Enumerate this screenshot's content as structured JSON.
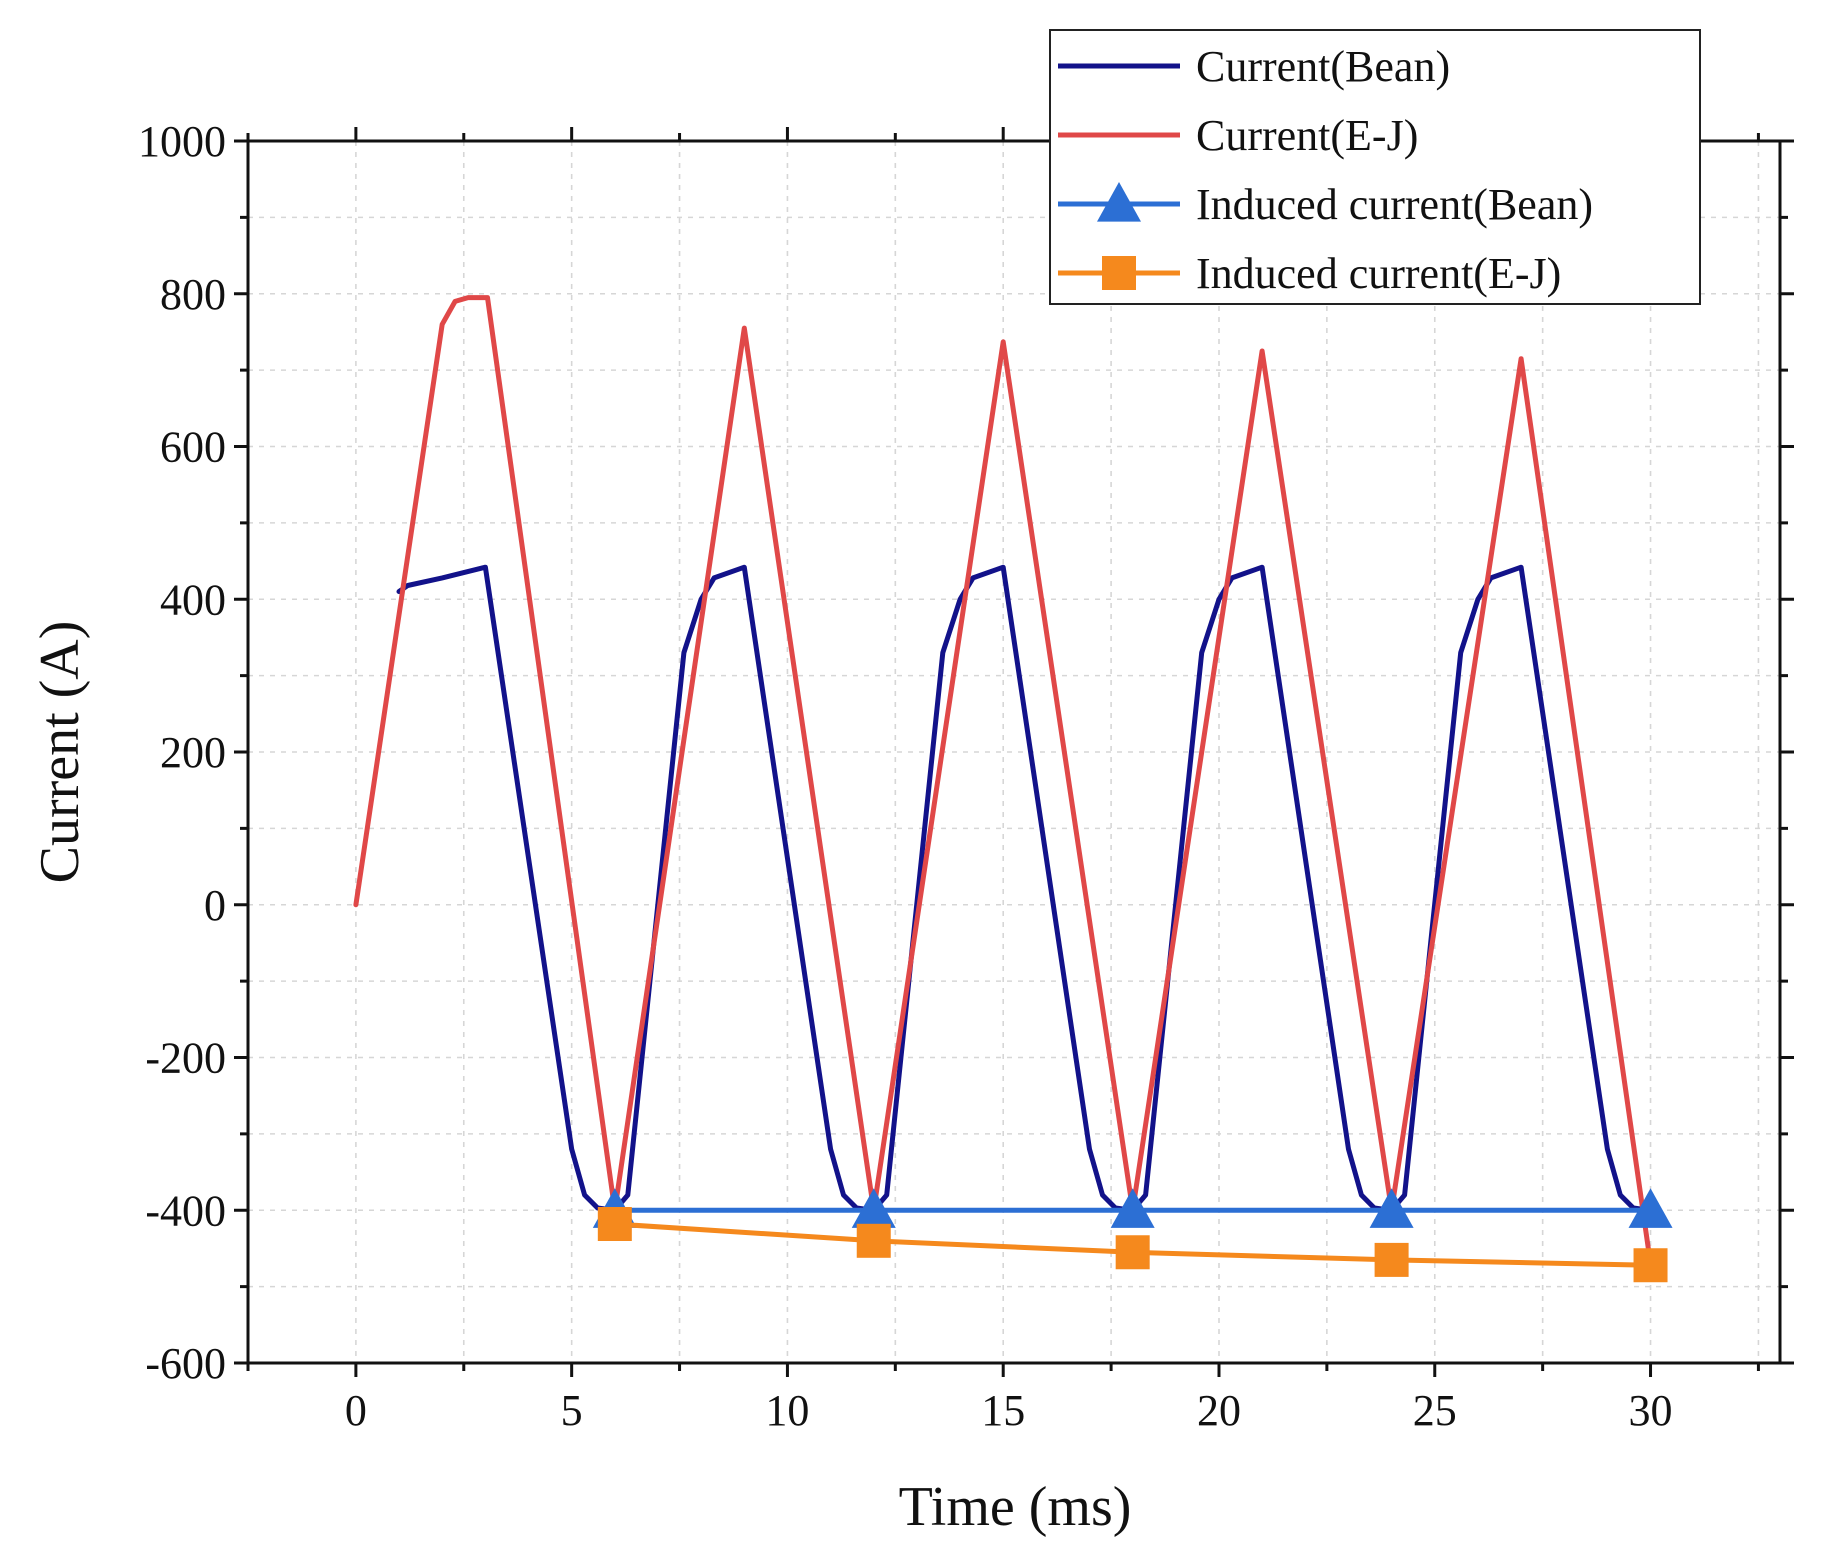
{
  "chart_data": {
    "type": "line",
    "xlabel": "Time (ms)",
    "ylabel": "Current (A)",
    "xlim": [
      -2.5,
      33
    ],
    "ylim": [
      -600,
      1000
    ],
    "xticks": [
      0,
      5,
      10,
      15,
      20,
      25,
      30
    ],
    "xtick_labels": [
      "0",
      "5",
      "10",
      "15",
      "20",
      "25",
      "30"
    ],
    "yticks": [
      -600,
      -400,
      -200,
      0,
      200,
      400,
      600,
      800,
      1000
    ],
    "ytick_labels": [
      "-600",
      "-400",
      "-200",
      "0",
      "200",
      "400",
      "600",
      "800",
      "1000"
    ],
    "grid": true,
    "legend_position": "top-right",
    "series": [
      {
        "name": "Current(Bean)",
        "color": "#12128a",
        "marker": "none",
        "x": [
          1,
          1.2,
          2,
          3,
          5,
          5.3,
          5.6,
          6,
          6.3,
          7.6,
          8,
          8.3,
          9,
          11,
          11.3,
          11.6,
          12,
          12.3,
          13.6,
          14,
          14.3,
          15,
          17,
          17.3,
          17.6,
          18,
          18.3,
          19.6,
          20,
          20.3,
          21,
          23,
          23.3,
          23.6,
          24,
          24.3,
          25.6,
          26,
          26.3,
          27,
          29,
          29.3,
          29.6,
          30
        ],
        "y": [
          410,
          418,
          428,
          442,
          -320,
          -380,
          -397,
          -400,
          -380,
          330,
          400,
          428,
          442,
          -320,
          -380,
          -397,
          -400,
          -380,
          330,
          400,
          428,
          442,
          -320,
          -380,
          -397,
          -400,
          -380,
          330,
          400,
          428,
          442,
          -320,
          -380,
          -397,
          -400,
          -380,
          330,
          400,
          428,
          442,
          -320,
          -380,
          -397,
          -400
        ]
      },
      {
        "name": "Current(E-J)",
        "color": "#e04848",
        "marker": "none",
        "x": [
          0,
          2,
          2.3,
          2.6,
          3.05,
          6,
          9,
          12,
          15,
          18,
          21,
          24,
          27,
          30
        ],
        "y": [
          0,
          760,
          790,
          795,
          795,
          -400,
          755,
          -400,
          737,
          -400,
          725,
          -400,
          715,
          -470
        ]
      },
      {
        "name": "Induced current(Bean)",
        "color": "#2c6fd4",
        "marker": "triangle",
        "x": [
          6,
          12,
          18,
          24,
          30
        ],
        "y": [
          -400,
          -400,
          -400,
          -400,
          -400
        ]
      },
      {
        "name": "Induced current(E-J)",
        "color": "#f5891d",
        "marker": "square",
        "x": [
          6,
          12,
          18,
          24,
          30
        ],
        "y": [
          -418,
          -440,
          -455,
          -465,
          -472
        ]
      }
    ]
  }
}
